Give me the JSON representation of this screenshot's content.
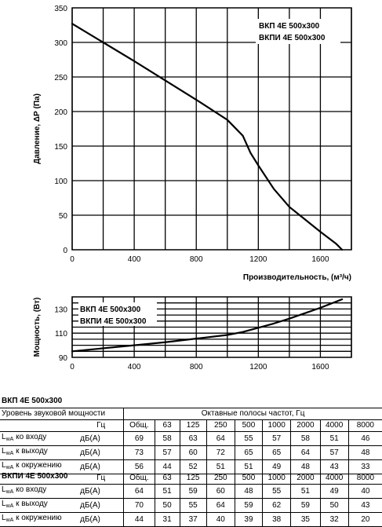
{
  "chart_data": [
    {
      "type": "line",
      "title": "",
      "xlabel": "Производительность, (м³/ч)",
      "ylabel": "Давление, ΔР (Па)",
      "xlim": [
        0,
        1800
      ],
      "ylim": [
        0,
        350
      ],
      "x_ticks": [
        "0",
        "400",
        "800",
        "1200",
        "1600"
      ],
      "y_ticks": [
        "0",
        "50",
        "100",
        "150",
        "200",
        "250",
        "300",
        "350"
      ],
      "grid": true,
      "legend": [
        "ВКП 4Е 500х300",
        "ВКПИ 4Е 500х300"
      ],
      "legend_position": "top-right",
      "series": [
        {
          "x": [
            0,
            200,
            400,
            600,
            800,
            1000,
            1100,
            1150,
            1200,
            1300,
            1400,
            1500,
            1600,
            1700,
            1740
          ],
          "y": [
            327,
            300,
            273,
            245,
            217,
            188,
            165,
            140,
            122,
            88,
            62,
            44,
            26,
            9,
            0
          ]
        }
      ]
    },
    {
      "type": "line",
      "title": "",
      "xlabel": "",
      "ylabel": "Мощность, (Вт)",
      "xlim": [
        0,
        1800
      ],
      "ylim": [
        90,
        140
      ],
      "x_ticks": [
        "0",
        "400",
        "800",
        "1200",
        "1600"
      ],
      "y_ticks": [
        "90",
        "110",
        "130"
      ],
      "grid": true,
      "legend": [
        "ВКП 4Е 500х300",
        "ВКПИ 4Е 500х300"
      ],
      "legend_position": "top-left",
      "series": [
        {
          "x": [
            0,
            200,
            400,
            600,
            800,
            1000,
            1100,
            1200,
            1300,
            1400,
            1500,
            1600,
            1740
          ],
          "y": [
            95,
            97.5,
            100,
            102.5,
            105.5,
            108.5,
            111,
            114.5,
            118,
            122,
            126.5,
            131,
            138
          ]
        }
      ]
    }
  ],
  "sound_tables": [
    {
      "title": "ВКП 4Е 500х300",
      "header_label": "Уровень звуковой мощности",
      "bands_label": "Октавные полосы частот, Гц",
      "unit_hz": "Гц",
      "columns": [
        "Общ.",
        "63",
        "125",
        "250",
        "500",
        "1000",
        "2000",
        "4000",
        "8000"
      ],
      "rows": [
        {
          "label_main": "L",
          "label_sub": "wA",
          "label_rest": " ко входу",
          "unit": "дБ(A)",
          "values": [
            "69",
            "58",
            "63",
            "64",
            "55",
            "57",
            "58",
            "51",
            "46"
          ]
        },
        {
          "label_main": "L",
          "label_sub": "wA",
          "label_rest": " к выходу",
          "unit": "дБ(A)",
          "values": [
            "73",
            "57",
            "60",
            "72",
            "65",
            "65",
            "64",
            "57",
            "48"
          ]
        },
        {
          "label_main": "L",
          "label_sub": "wA",
          "label_rest": " к окружению",
          "unit": "дБ(A)",
          "values": [
            "56",
            "44",
            "52",
            "51",
            "51",
            "49",
            "48",
            "43",
            "33"
          ]
        }
      ]
    },
    {
      "title": "ВКПИ 4Е 500х300",
      "unit_hz": "Гц",
      "columns": [
        "Общ.",
        "63",
        "125",
        "250",
        "500",
        "1000",
        "2000",
        "4000",
        "8000"
      ],
      "rows": [
        {
          "label_main": "L",
          "label_sub": "wA",
          "label_rest": " ко входу",
          "unit": "дБ(A)",
          "values": [
            "64",
            "51",
            "59",
            "60",
            "48",
            "55",
            "51",
            "49",
            "40"
          ]
        },
        {
          "label_main": "L",
          "label_sub": "wA",
          "label_rest": " к выходу",
          "unit": "дБ(A)",
          "values": [
            "70",
            "50",
            "55",
            "64",
            "59",
            "62",
            "59",
            "50",
            "43"
          ]
        },
        {
          "label_main": "L",
          "label_sub": "wA",
          "label_rest": " к окружению",
          "unit": "дБ(A)",
          "values": [
            "44",
            "31",
            "37",
            "40",
            "39",
            "38",
            "35",
            "32",
            "20"
          ]
        }
      ]
    }
  ]
}
